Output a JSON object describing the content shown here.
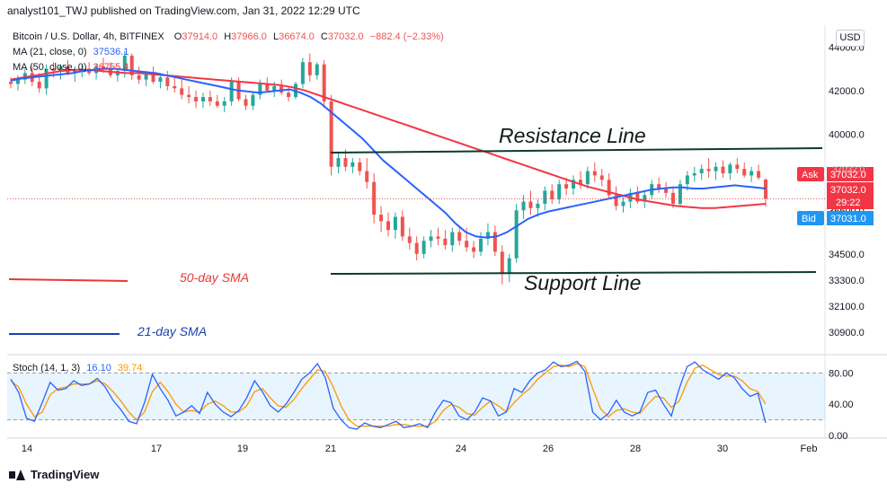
{
  "header": {
    "published": "analyst101_TWJ published on TradingView.com, Jan 31, 2022 12:29 UTC"
  },
  "symbol": {
    "title": "Bitcoin / U.S. Dollar, 4h, BITFINEX",
    "o_label": "O",
    "o_value": "37914.0",
    "h_label": "H",
    "h_value": "37966.0",
    "l_label": "L",
    "l_value": "36674.0",
    "c_label": "C",
    "c_value": "37032.0",
    "change": "−882.4 (−2.33%)"
  },
  "indicators": {
    "ma21_label": "MA (21, close, 0)",
    "ma21_value": "37536.1",
    "ma50_label": "MA (50, close, 0)",
    "ma50_value": "36755.4",
    "stoch_label": "Stoch (14, 1, 3)",
    "stoch_k": "16.10",
    "stoch_d": "39.74"
  },
  "currency": "USD",
  "price_tags": {
    "ask_label": "Ask",
    "ask_value": "37032.0",
    "last_value": "37032.0",
    "countdown": "29:22",
    "bid_label": "Bid",
    "bid_value": "37031.0",
    "overlap_value": "37032.0"
  },
  "annotations": {
    "resistance": "Resistance Line",
    "support": "Support Line",
    "sma50": "50-day SMA",
    "sma21": "21-day SMA"
  },
  "footer": {
    "brand": "TradingView"
  },
  "colors": {
    "up": "#26a69a",
    "down": "#ef5350",
    "ma21": "#2962ff",
    "ma50": "#f23645",
    "stoch_k": "#2962ff",
    "stoch_d": "#ff9800",
    "ask": "#f23645",
    "bid": "#2196f3",
    "annotation_red": "#e53935",
    "annotation_blue": "#1e40af"
  },
  "chart_data": {
    "type": "candlestick",
    "price_axis": {
      "ticks": [
        44000,
        42000,
        40000,
        36500,
        34500,
        33300,
        32100,
        30900
      ],
      "tick_labels": [
        "44000.0",
        "42000.0",
        "40000.0",
        "36500.0",
        "34500.0",
        "33300.0",
        "32100.0",
        "30900.0"
      ],
      "range": [
        30000,
        45000
      ]
    },
    "stoch_axis": {
      "ticks": [
        80,
        40,
        0
      ],
      "tick_labels": [
        "80.00",
        "40.00",
        "0.00"
      ],
      "band": [
        20,
        80
      ],
      "range": [
        0,
        100
      ]
    },
    "time_axis": {
      "labels": [
        "14",
        "17",
        "19",
        "21",
        "24",
        "26",
        "28",
        "30",
        "Feb"
      ]
    },
    "candles": [
      [
        42400,
        42600,
        42100,
        42300
      ],
      [
        42300,
        42700,
        42000,
        42500
      ],
      [
        42500,
        43000,
        42300,
        42800
      ],
      [
        42800,
        43100,
        42200,
        42400
      ],
      [
        42400,
        42800,
        41900,
        42100
      ],
      [
        42100,
        43200,
        41800,
        43000
      ],
      [
        43000,
        43300,
        42600,
        42900
      ],
      [
        42900,
        43200,
        42500,
        43100
      ],
      [
        43100,
        43400,
        42700,
        42800
      ],
      [
        42800,
        43100,
        42400,
        42900
      ],
      [
        42900,
        43200,
        42600,
        43000
      ],
      [
        43000,
        43300,
        42700,
        42800
      ],
      [
        42800,
        43200,
        42500,
        43100
      ],
      [
        43100,
        43500,
        42800,
        43000
      ],
      [
        43000,
        43300,
        42600,
        42700
      ],
      [
        42700,
        43000,
        42400,
        42900
      ],
      [
        42900,
        43800,
        42600,
        43600
      ],
      [
        43600,
        43700,
        42500,
        42700
      ],
      [
        42700,
        43100,
        42300,
        42500
      ],
      [
        42500,
        42900,
        42200,
        42800
      ],
      [
        42800,
        43100,
        42300,
        42400
      ],
      [
        42400,
        42800,
        42100,
        42600
      ],
      [
        42600,
        42900,
        42000,
        42200
      ],
      [
        42200,
        42600,
        41900,
        42100
      ],
      [
        42100,
        42500,
        41600,
        41800
      ],
      [
        41800,
        42200,
        41400,
        41700
      ],
      [
        41700,
        42000,
        41200,
        41500
      ],
      [
        41500,
        41900,
        41200,
        41700
      ],
      [
        41700,
        42000,
        41300,
        41500
      ],
      [
        41500,
        41800,
        41200,
        41300
      ],
      [
        41300,
        41700,
        41000,
        41500
      ],
      [
        41500,
        42600,
        41300,
        42400
      ],
      [
        42400,
        42600,
        41500,
        41600
      ],
      [
        41600,
        41800,
        41100,
        41300
      ],
      [
        41300,
        41900,
        41100,
        41800
      ],
      [
        41800,
        42500,
        41600,
        42300
      ],
      [
        42300,
        42600,
        41900,
        42000
      ],
      [
        42000,
        42400,
        41700,
        42200
      ],
      [
        42200,
        42500,
        41800,
        41900
      ],
      [
        41900,
        42200,
        41500,
        41700
      ],
      [
        41700,
        42400,
        41600,
        42300
      ],
      [
        42300,
        43500,
        42100,
        43300
      ],
      [
        43300,
        43700,
        42400,
        42700
      ],
      [
        42700,
        43300,
        42500,
        43200
      ],
      [
        43200,
        43400,
        41200,
        41500
      ],
      [
        41500,
        41800,
        38100,
        38500
      ],
      [
        38500,
        39200,
        38200,
        38900
      ],
      [
        38900,
        39300,
        38300,
        38500
      ],
      [
        38500,
        38900,
        38200,
        38700
      ],
      [
        38700,
        38900,
        38100,
        38300
      ],
      [
        38300,
        38900,
        37500,
        37800
      ],
      [
        37800,
        38200,
        35900,
        36300
      ],
      [
        36300,
        36700,
        35500,
        36000
      ],
      [
        36000,
        36400,
        35300,
        35600
      ],
      [
        35600,
        36400,
        35200,
        36200
      ],
      [
        36200,
        36500,
        35100,
        35300
      ],
      [
        35300,
        35700,
        34700,
        35000
      ],
      [
        35000,
        35300,
        34200,
        34500
      ],
      [
        34500,
        35300,
        34300,
        35100
      ],
      [
        35100,
        35600,
        34800,
        35300
      ],
      [
        35300,
        35700,
        34900,
        35200
      ],
      [
        35200,
        35600,
        34700,
        34900
      ],
      [
        34900,
        35700,
        34600,
        35500
      ],
      [
        35500,
        35800,
        34900,
        35100
      ],
      [
        35100,
        35700,
        34600,
        34800
      ],
      [
        34800,
        35100,
        34300,
        34600
      ],
      [
        34600,
        35500,
        34400,
        35200
      ],
      [
        35200,
        35900,
        34900,
        35500
      ],
      [
        35500,
        35800,
        34400,
        34600
      ],
      [
        34600,
        34900,
        33100,
        33600
      ],
      [
        33600,
        34500,
        33200,
        34300
      ],
      [
        34300,
        36800,
        34100,
        36500
      ],
      [
        36500,
        37200,
        36100,
        36900
      ],
      [
        36900,
        37400,
        36300,
        36600
      ],
      [
        36600,
        37000,
        36200,
        36800
      ],
      [
        36800,
        37600,
        36500,
        37400
      ],
      [
        37400,
        37700,
        36800,
        37000
      ],
      [
        37000,
        37900,
        36800,
        37700
      ],
      [
        37700,
        38000,
        37200,
        37500
      ],
      [
        37500,
        38100,
        37200,
        37900
      ],
      [
        37900,
        38300,
        37500,
        37700
      ],
      [
        37700,
        38500,
        37500,
        38300
      ],
      [
        38300,
        38700,
        37800,
        38100
      ],
      [
        38100,
        38400,
        37600,
        37900
      ],
      [
        37900,
        38200,
        37000,
        37200
      ],
      [
        37200,
        37600,
        36500,
        36700
      ],
      [
        36700,
        37100,
        36400,
        36900
      ],
      [
        36900,
        37500,
        36600,
        37300
      ],
      [
        37300,
        37600,
        36800,
        36900
      ],
      [
        36900,
        37400,
        36600,
        37200
      ],
      [
        37200,
        37900,
        37000,
        37700
      ],
      [
        37700,
        38000,
        37300,
        37500
      ],
      [
        37500,
        37800,
        37100,
        37300
      ],
      [
        37300,
        37600,
        36600,
        36800
      ],
      [
        36800,
        37900,
        36700,
        37700
      ],
      [
        37700,
        38300,
        37400,
        38100
      ],
      [
        38100,
        38500,
        37800,
        38200
      ],
      [
        38200,
        38600,
        37900,
        38400
      ],
      [
        38400,
        38900,
        38000,
        38300
      ],
      [
        38300,
        38700,
        37900,
        38500
      ],
      [
        38500,
        38800,
        38000,
        38200
      ],
      [
        38200,
        38700,
        37900,
        38600
      ],
      [
        38600,
        38900,
        38200,
        38400
      ],
      [
        38400,
        38700,
        38000,
        38100
      ],
      [
        38100,
        38500,
        37800,
        38300
      ],
      [
        38300,
        38600,
        37900,
        38000
      ],
      [
        37914,
        37966,
        36674,
        37032
      ]
    ],
    "sma21": [
      42450,
      42550,
      42600,
      42650,
      42700,
      42750,
      42800,
      42900,
      42950,
      43000,
      43000,
      42950,
      42900,
      42850,
      42800,
      42700,
      42600,
      42500,
      42400,
      42300,
      42200,
      42100,
      42000,
      41950,
      41900,
      41950,
      42000,
      42050,
      41900,
      41700,
      41400,
      41000,
      40600,
      40200,
      39800,
      39300,
      38800,
      38400,
      38000,
      37600,
      37200,
      36800,
      36400,
      35900,
      35500,
      35300,
      35250,
      35300,
      35500,
      35800,
      36100,
      36300,
      36450,
      36550,
      36650,
      36750,
      36850,
      36950,
      37050,
      37150,
      37250,
      37350,
      37450,
      37500,
      37550,
      37550,
      37500,
      37500,
      37550,
      37600,
      37650,
      37600,
      37550,
      37500
    ],
    "sma50": [
      42500,
      42600,
      42700,
      42800,
      42900,
      42950,
      42950,
      42900,
      42850,
      42800,
      42800,
      42750,
      42700,
      42650,
      42600,
      42550,
      42500,
      42450,
      42400,
      42350,
      42300,
      42250,
      42150,
      42000,
      41800,
      41600,
      41400,
      41200,
      41000,
      40800,
      40600,
      40400,
      40200,
      40000,
      39800,
      39600,
      39400,
      39200,
      39000,
      38800,
      38600,
      38400,
      38200,
      38000,
      37800,
      37600,
      37450,
      37300,
      37150,
      37000,
      36900,
      36800,
      36700,
      36650,
      36600,
      36600,
      36650,
      36700,
      36750,
      36800
    ]
  }
}
